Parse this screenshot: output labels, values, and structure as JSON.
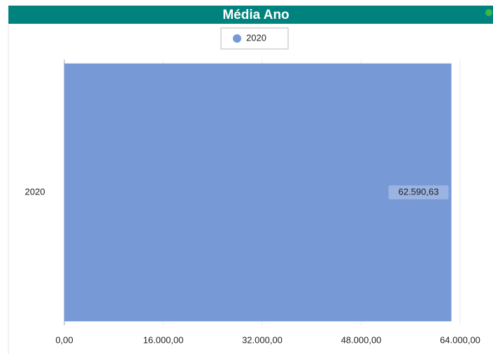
{
  "chart_data": {
    "type": "bar",
    "orientation": "horizontal",
    "title": "Média Ano",
    "categories": [
      "2020"
    ],
    "series": [
      {
        "name": "2020",
        "color": "#7799d6",
        "values": [
          62590.63
        ],
        "value_labels": [
          "62.590,63"
        ]
      }
    ],
    "xlim": [
      0,
      64000
    ],
    "xticks": [
      {
        "value": 0,
        "label": "0,00"
      },
      {
        "value": 16000,
        "label": "16.000,00"
      },
      {
        "value": 32000,
        "label": "32.000,00"
      },
      {
        "value": 48000,
        "label": "48.000,00"
      },
      {
        "value": 64000,
        "label": "64.000,00"
      }
    ],
    "grid": true,
    "legend": "top"
  }
}
